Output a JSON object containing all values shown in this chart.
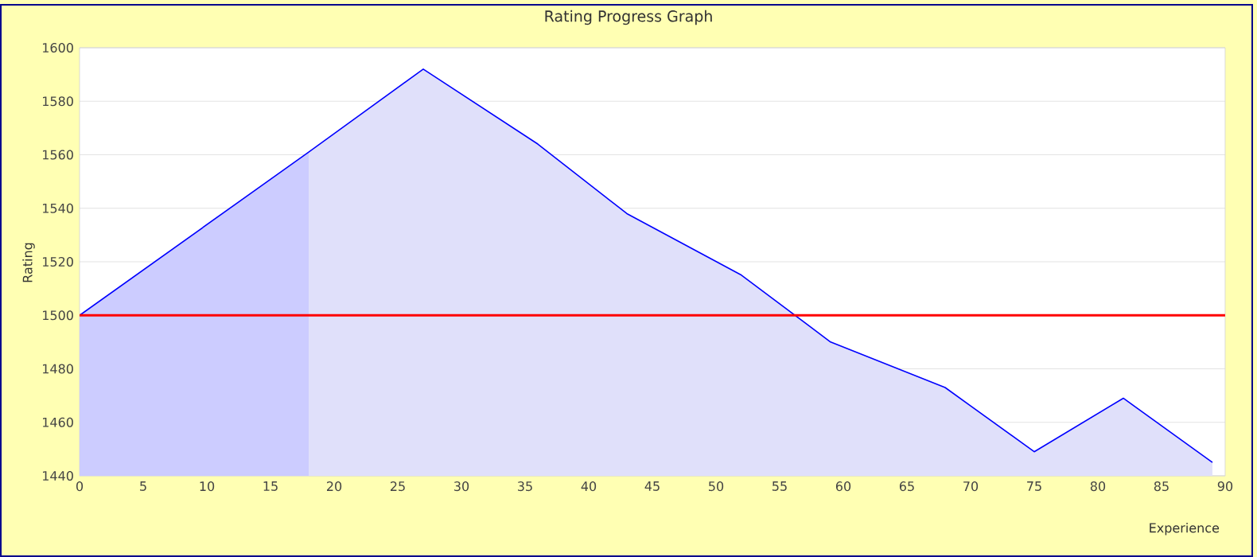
{
  "chart_data": {
    "type": "area",
    "title": "Rating Progress Graph",
    "xlabel": "Experience",
    "ylabel": "Rating",
    "x": [
      0,
      18,
      27,
      36,
      43,
      52,
      59,
      68,
      75,
      82,
      89
    ],
    "series": [
      {
        "color": "#0000ff",
        "values": [
          1500,
          1561,
          1592,
          1564,
          1538,
          1515,
          1490,
          1473,
          1449,
          1469,
          1445
        ]
      }
    ],
    "xlim": [
      0,
      90
    ],
    "ylim": [
      1440,
      1600
    ],
    "xticks": [
      0,
      5,
      10,
      15,
      20,
      25,
      30,
      35,
      40,
      45,
      50,
      55,
      60,
      65,
      70,
      75,
      80,
      85,
      90
    ],
    "yticks": [
      1440,
      1460,
      1480,
      1500,
      1520,
      1540,
      1560,
      1580,
      1600
    ],
    "grid": "y",
    "ref_lines": [
      {
        "axis": "y",
        "value": 1500,
        "color": "#ff0000"
      }
    ],
    "bands": [
      {
        "axis": "x",
        "from": 0,
        "to": 18,
        "color": "#ccccff"
      }
    ]
  }
}
